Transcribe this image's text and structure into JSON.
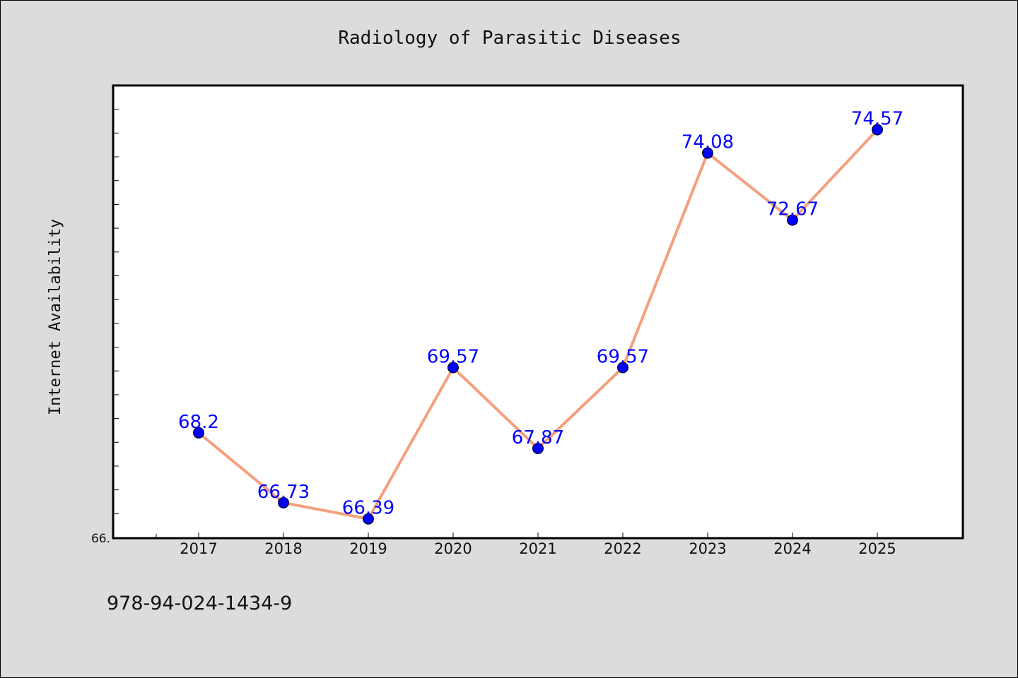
{
  "chart_data": {
    "type": "line",
    "title": "Radiology of Parasitic Diseases",
    "xlabel": "",
    "ylabel": "Internet Availability",
    "x": [
      "2017",
      "2018",
      "2019",
      "2020",
      "2021",
      "2022",
      "2023",
      "2024",
      "2025"
    ],
    "series": [
      {
        "values": [
          68.2,
          66.73,
          66.39,
          69.57,
          67.87,
          69.57,
          74.08,
          72.67,
          74.57
        ]
      }
    ],
    "data_labels": [
      "68.2",
      "66.73",
      "66.39",
      "69.57",
      "67.87",
      "69.57",
      "74.08",
      "72.67",
      "74.57"
    ],
    "ylim": [
      66.0,
      75.5
    ],
    "xlim_categories_offset": 1,
    "ytick_label": "66.",
    "minor_ytick_step": 0.5,
    "grid": false,
    "legend": "none",
    "colors": {
      "line": "#f4a07e",
      "marker": "#0000ff",
      "marker_edge": "#000000",
      "data_label": "#0000ff",
      "background": "#dcdcdc",
      "plot_area": "#ffffff"
    }
  },
  "footer": {
    "isbn": "978-94-024-1434-9"
  }
}
